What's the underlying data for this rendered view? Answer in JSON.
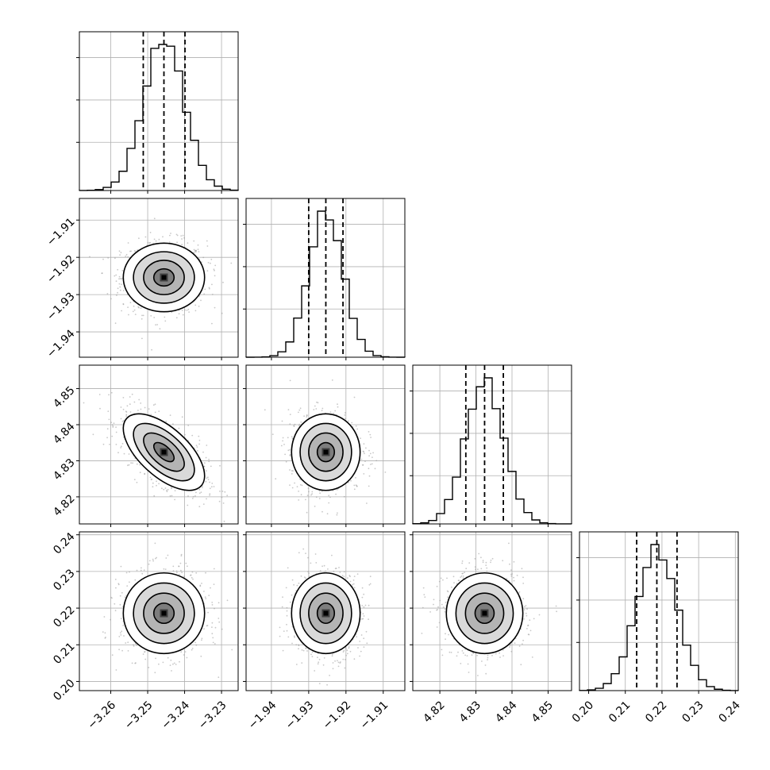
{
  "chart_data": {
    "type": "corner",
    "title": "",
    "parameters": [
      {
        "range": [
          -3.2685,
          -3.2255
        ],
        "ticks": [
          -3.26,
          -3.25,
          -3.24,
          -3.23
        ],
        "tick_labels": [
          "−3.26",
          "−3.25",
          "−3.24",
          "−3.23"
        ],
        "mean": -3.2456,
        "sigma": 0.0055,
        "quantiles": [
          -3.2512,
          -3.2456,
          -3.2399
        ],
        "hist_peak": 1.0
      },
      {
        "range": [
          -1.9468,
          -1.9042
        ],
        "ticks": [
          -1.94,
          -1.93,
          -1.92,
          -1.91
        ],
        "tick_labels": [
          "−1.94",
          "−1.93",
          "−1.92",
          "−1.91"
        ],
        "mean": -1.9254,
        "sigma": 0.0046,
        "quantiles": [
          -1.93,
          -1.9254,
          -1.9208
        ],
        "hist_peak": 1.0
      },
      {
        "range": [
          4.8125,
          4.8565
        ],
        "ticks": [
          4.82,
          4.83,
          4.84,
          4.85
        ],
        "tick_labels": [
          "4.82",
          "4.83",
          "4.84",
          "4.85"
        ],
        "mean": 4.8324,
        "sigma": 0.0053,
        "quantiles": [
          4.8272,
          4.8324,
          4.8376
        ],
        "hist_peak": 1.0
      },
      {
        "range": [
          0.1975,
          0.2408
        ],
        "ticks": [
          0.2,
          0.21,
          0.22,
          0.23,
          0.24
        ],
        "tick_labels": [
          "0.20",
          "0.21",
          "0.22",
          "0.23",
          "0.24"
        ],
        "mean": 0.2186,
        "sigma": 0.0055,
        "quantiles": [
          0.2131,
          0.2186,
          0.2241
        ],
        "hist_peak": 1.0
      }
    ],
    "correlations": [
      [
        0,
        1,
        0.0
      ],
      [
        0,
        2,
        -0.62
      ],
      [
        0,
        3,
        0.0
      ],
      [
        1,
        2,
        0.0
      ],
      [
        1,
        3,
        0.0
      ],
      [
        2,
        3,
        0.0
      ]
    ],
    "contour_levels_sigma": [
      0.5,
      1.0,
      1.5,
      2.0
    ],
    "quantile_style": "dashed",
    "grid": true,
    "colors": {
      "line": "#000000",
      "grid": "#b0b0b0",
      "points": "#9a9a9a"
    }
  }
}
